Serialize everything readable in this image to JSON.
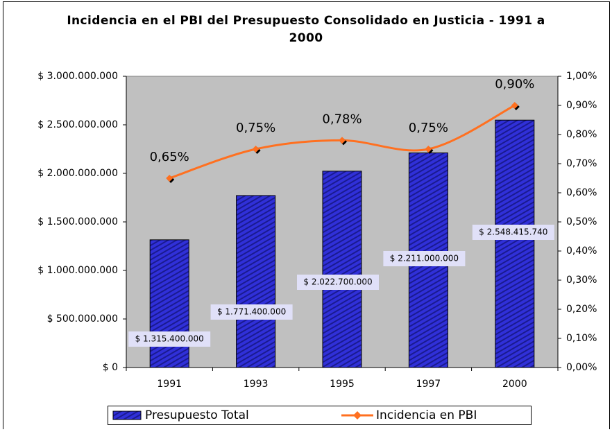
{
  "chart_data": {
    "type": "bar_line",
    "title": "Incidencia en el PBI del Presupuesto Consolidado en Justicia - 1991 a 2000",
    "categories": [
      "1991",
      "1993",
      "1995",
      "1997",
      "2000"
    ],
    "series": [
      {
        "name": "Presupuesto Total",
        "type": "bar",
        "color": "#2a2ad0",
        "values": [
          1315400000,
          1771400000,
          2022700000,
          2211000000,
          2548415740
        ],
        "value_labels": [
          "$ 1.315.400.000",
          "$ 1.771.400.000",
          "$ 2.022.700.000",
          "$ 2.211.000.000",
          "$ 2.548.415.740"
        ]
      },
      {
        "name": "Incidencia en PBI",
        "type": "line",
        "axis": "y2",
        "color": "#ff7020",
        "values": [
          0.65,
          0.75,
          0.78,
          0.75,
          0.9
        ],
        "value_labels": [
          "0,65%",
          "0,75%",
          "0,78%",
          "0,75%",
          "0,90%"
        ]
      }
    ],
    "ylim": [
      0,
      3000000000
    ],
    "yticks": [
      {
        "value": 0,
        "label": "$ 0"
      },
      {
        "value": 500000000,
        "label": "$ 500.000.000"
      },
      {
        "value": 1000000000,
        "label": "$ 1.000.000.000"
      },
      {
        "value": 1500000000,
        "label": "$ 1.500.000.000"
      },
      {
        "value": 2000000000,
        "label": "$ 2.000.000.000"
      },
      {
        "value": 2500000000,
        "label": "$ 2.500.000.000"
      },
      {
        "value": 3000000000,
        "label": "$ 3.000.000.000"
      }
    ],
    "y2lim": [
      0,
      1
    ],
    "y2ticks": [
      {
        "value": 0,
        "label": "0,00%"
      },
      {
        "value": 0.1,
        "label": "0,10%"
      },
      {
        "value": 0.2,
        "label": "0,20%"
      },
      {
        "value": 0.3,
        "label": "0,30%"
      },
      {
        "value": 0.4,
        "label": "0,40%"
      },
      {
        "value": 0.5,
        "label": "0,50%"
      },
      {
        "value": 0.6,
        "label": "0,60%"
      },
      {
        "value": 0.7,
        "label": "0,70%"
      },
      {
        "value": 0.8,
        "label": "0,80%"
      },
      {
        "value": 0.9,
        "label": "0,90%"
      },
      {
        "value": 1,
        "label": "1,00%"
      }
    ],
    "legend": "bottom"
  }
}
